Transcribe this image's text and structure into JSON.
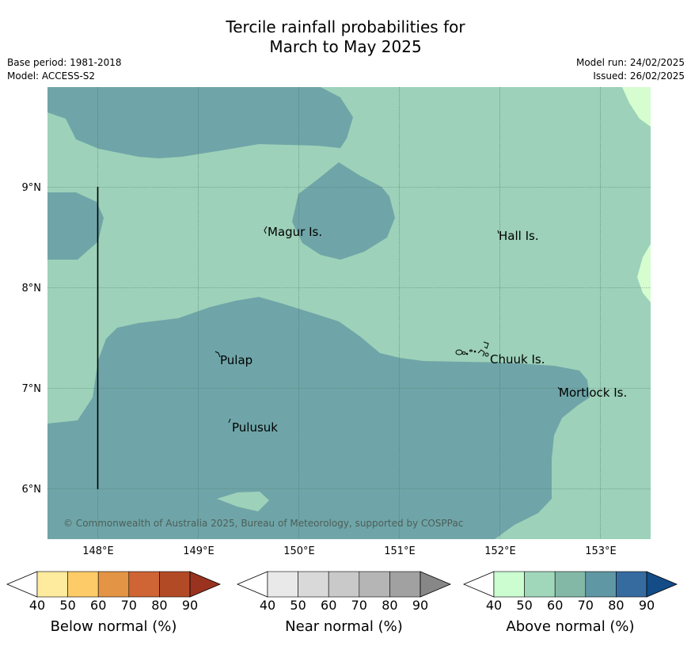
{
  "title": {
    "line1": "Tercile rainfall probabilities for",
    "line2": "March to May 2025"
  },
  "meta": {
    "base_period": "Base period: 1981-2018",
    "model": "Model: ACCESS-S2",
    "model_run": "Model run: 24/02/2025",
    "issued": "Issued: 26/02/2025"
  },
  "map": {
    "lon_ticks": [
      "148°E",
      "149°E",
      "150°E",
      "151°E",
      "152°E",
      "153°E"
    ],
    "lat_ticks": [
      "9°N",
      "8°N",
      "7°N",
      "6°N"
    ],
    "places": [
      "Magur Is.",
      "Hall Is.",
      "Pulap",
      "Chuuk Is.",
      "Mortlock Is.",
      "Pulusuk"
    ],
    "copyright": "© Commonwealth of Australia 2025, Bureau of Meteorology, supported by COSPPac",
    "colors": {
      "above_50_60": "#9dd1b9",
      "above_60_70": "#6fa5a8",
      "above_40_50": "#d5fdd0"
    }
  },
  "legends": [
    {
      "label": "Below normal (%)",
      "ticks": [
        "40",
        "50",
        "60",
        "70",
        "80",
        "90"
      ],
      "colors": [
        "#ffffff",
        "#ffeb9e",
        "#fdcb67",
        "#e39545",
        "#cf6434",
        "#b34a26",
        "#9a3220"
      ]
    },
    {
      "label": "Near normal (%)",
      "ticks": [
        "40",
        "50",
        "60",
        "70",
        "80",
        "90"
      ],
      "colors": [
        "#ffffff",
        "#e9e9e9",
        "#d9d9d9",
        "#c9c9c9",
        "#b5b5b5",
        "#a1a1a1",
        "#878787"
      ]
    },
    {
      "label": "Above normal (%)",
      "ticks": [
        "40",
        "50",
        "60",
        "70",
        "80",
        "90"
      ],
      "colors": [
        "#ffffff",
        "#cbfdd0",
        "#a0d7bb",
        "#83b8a7",
        "#5f98a4",
        "#366ba0",
        "#134c87"
      ]
    }
  ]
}
